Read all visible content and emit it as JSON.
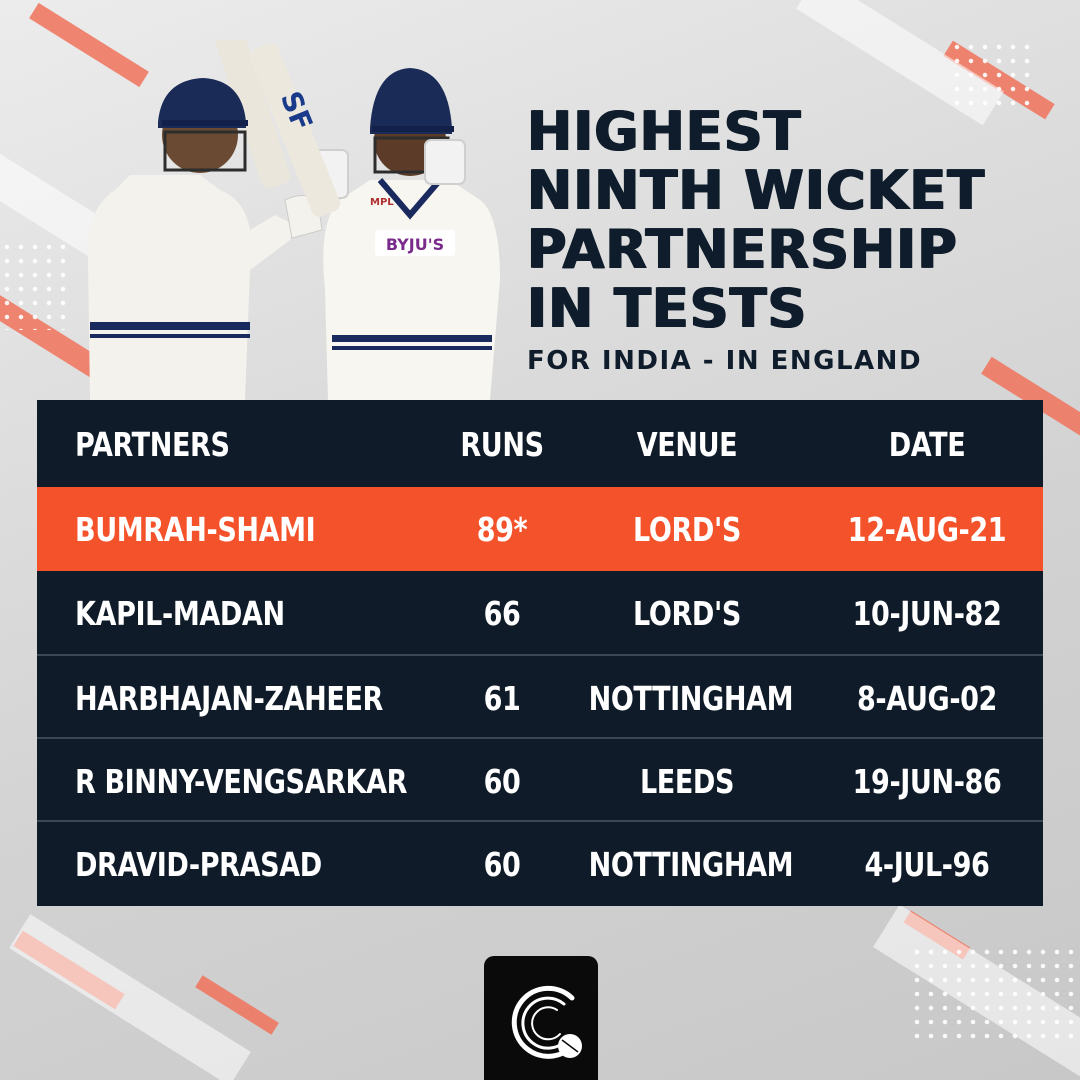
{
  "title": {
    "lines": [
      "HIGHEST",
      "NINTH WICKET",
      "PARTNERSHIP",
      "IN TESTS"
    ],
    "subtitle": "FOR INDIA - IN ENGLAND"
  },
  "table": {
    "headers": {
      "partners": "PARTNERS",
      "runs": "RUNS",
      "venue": "VENUE",
      "date": "DATE"
    },
    "rows": [
      {
        "partners": "BUMRAH-SHAMI",
        "runs": "89*",
        "venue": "LORD'S",
        "date": "12-AUG-21",
        "highlighted": true
      },
      {
        "partners": "KAPIL-MADAN",
        "runs": "66",
        "venue": "LORD'S",
        "date": "10-JUN-82"
      },
      {
        "partners": "HARBHAJAN-ZAHEER",
        "runs": "61",
        "venue": "NOTTINGHAM",
        "date": "8-AUG-02"
      },
      {
        "partners": "R BINNY-VENGSARKAR",
        "runs": "60",
        "venue": "LEEDS",
        "date": "19-JUN-86"
      },
      {
        "partners": "DRAVID-PRASAD",
        "runs": "60",
        "venue": "NOTTINGHAM",
        "date": "4-JUL-96"
      }
    ]
  },
  "players_photo": {
    "jersey_sponsor": "BYJU'S",
    "bat_brand": "SF",
    "jersey_kit": "MPL"
  },
  "logo": {
    "icon": "brand-logo-icon"
  },
  "colors": {
    "navy": "#0f1b29",
    "highlight": "#f4522a",
    "accent_stripe": "#f0725a",
    "text_dark": "#0f1c2b"
  }
}
